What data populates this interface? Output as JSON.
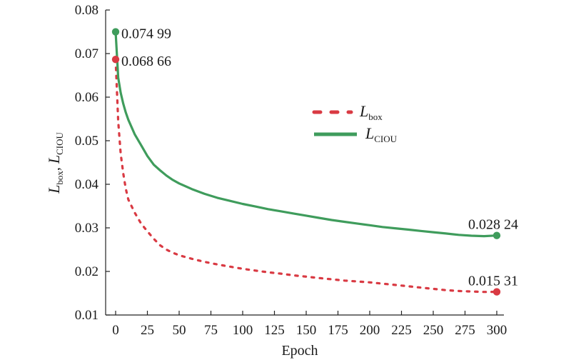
{
  "chart_data": {
    "type": "line",
    "xlabel": "Epoch",
    "ylabel": {
      "main": "L",
      "sub1": "box",
      "sep": ", ",
      "sub2": "CIOU"
    },
    "xlim": [
      0,
      300
    ],
    "ylim": [
      0.01,
      0.08
    ],
    "xticks": [
      0,
      25,
      50,
      75,
      100,
      125,
      150,
      175,
      200,
      225,
      250,
      275,
      300
    ],
    "yticks": [
      0.01,
      0.02,
      0.03,
      0.04,
      0.05,
      0.06,
      0.07,
      0.08
    ],
    "ytick_labels": [
      "0.01",
      "0.02",
      "0.03",
      "0.04",
      "0.05",
      "0.06",
      "0.07",
      "0.08"
    ],
    "legend": {
      "position": "center-right",
      "entries": [
        {
          "main": "L",
          "sub": "box"
        },
        {
          "main": "L",
          "sub": "CIOU"
        }
      ]
    },
    "series": [
      {
        "key": "box",
        "style": "dotted",
        "color": "#d93a43",
        "x": [
          0,
          2,
          4,
          6,
          8,
          10,
          15,
          20,
          25,
          30,
          35,
          40,
          45,
          50,
          60,
          70,
          80,
          90,
          100,
          110,
          120,
          130,
          140,
          150,
          160,
          170,
          180,
          190,
          200,
          210,
          220,
          230,
          240,
          250,
          260,
          270,
          280,
          290,
          300
        ],
        "y": [
          0.06866,
          0.0545,
          0.047,
          0.0425,
          0.039,
          0.0365,
          0.0335,
          0.031,
          0.0292,
          0.0275,
          0.026,
          0.025,
          0.0243,
          0.0237,
          0.0229,
          0.0222,
          0.0216,
          0.0211,
          0.0206,
          0.0202,
          0.0198,
          0.0195,
          0.0191,
          0.0188,
          0.0185,
          0.0182,
          0.0179,
          0.0177,
          0.0175,
          0.0172,
          0.0169,
          0.0166,
          0.0163,
          0.016,
          0.0157,
          0.0155,
          0.0154,
          0.0153,
          0.01531
        ]
      },
      {
        "key": "ciou",
        "style": "solid",
        "color": "#3f9c5c",
        "x": [
          0,
          2,
          4,
          6,
          8,
          10,
          15,
          20,
          25,
          30,
          35,
          40,
          45,
          50,
          60,
          70,
          80,
          90,
          100,
          110,
          120,
          130,
          140,
          150,
          160,
          170,
          180,
          190,
          200,
          210,
          220,
          230,
          240,
          250,
          260,
          270,
          280,
          290,
          300
        ],
        "y": [
          0.07499,
          0.0645,
          0.061,
          0.0585,
          0.0565,
          0.0548,
          0.0515,
          0.049,
          0.0465,
          0.0445,
          0.0432,
          0.042,
          0.041,
          0.0402,
          0.0389,
          0.0378,
          0.0369,
          0.0362,
          0.0355,
          0.0349,
          0.0343,
          0.0338,
          0.0333,
          0.0328,
          0.0323,
          0.0318,
          0.0314,
          0.031,
          0.0306,
          0.0302,
          0.0299,
          0.0296,
          0.0293,
          0.029,
          0.0287,
          0.0284,
          0.0282,
          0.0281,
          0.02824
        ]
      }
    ],
    "annotations": [
      {
        "text": "0.074 99",
        "x": 0,
        "y": 0.07499,
        "series": "ciou"
      },
      {
        "text": "0.068 66",
        "x": 0,
        "y": 0.06866,
        "series": "box"
      },
      {
        "text": "0.028 24",
        "x": 300,
        "y": 0.02824,
        "series": "ciou"
      },
      {
        "text": "0.015 31",
        "x": 300,
        "y": 0.01531,
        "series": "box"
      }
    ]
  }
}
